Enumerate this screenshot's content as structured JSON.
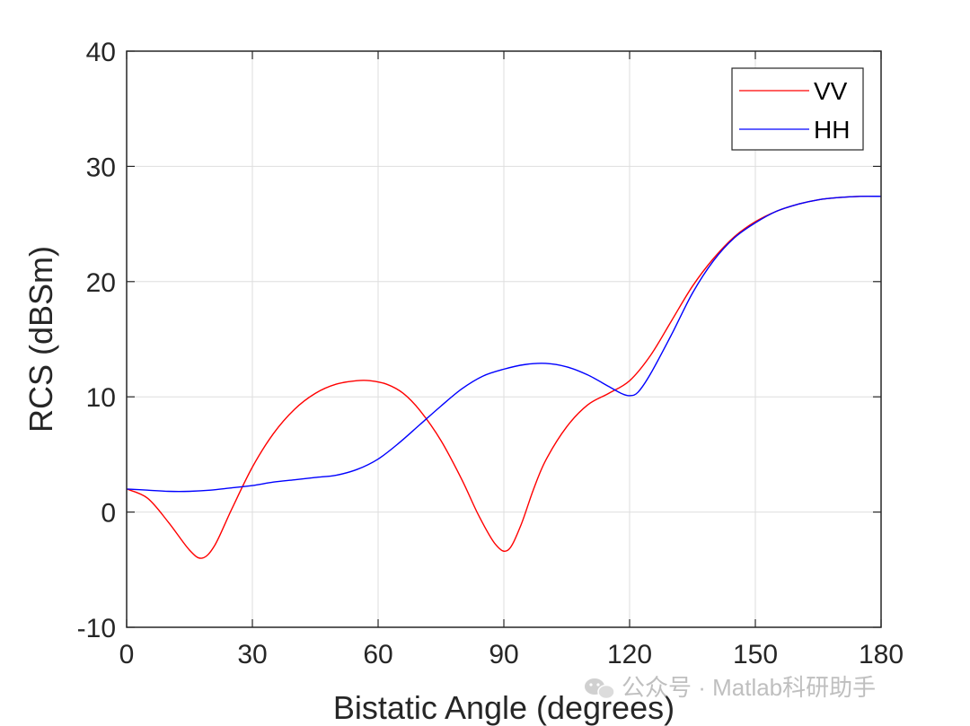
{
  "chart_data": {
    "type": "line",
    "title": "",
    "xlabel": "Bistatic Angle (degrees)",
    "ylabel": "RCS (dBSm)",
    "xlim": [
      0,
      180
    ],
    "ylim": [
      -10,
      40
    ],
    "xticks": [
      0,
      30,
      60,
      90,
      120,
      150,
      180
    ],
    "yticks": [
      -10,
      0,
      10,
      20,
      30,
      40
    ],
    "xtick_labels": [
      "0",
      "30",
      "60",
      "90",
      "120",
      "150",
      "180"
    ],
    "ytick_labels": [
      "-10",
      "0",
      "10",
      "20",
      "30",
      "40"
    ],
    "grid": true,
    "legend_position": "top-right",
    "series": [
      {
        "name": "VV",
        "color": "#ff0000",
        "x": [
          0,
          5,
          10,
          15,
          18,
          21,
          25,
          30,
          35,
          40,
          45,
          50,
          55,
          58,
          62,
          66,
          70,
          75,
          80,
          84,
          88,
          91,
          94,
          97,
          100,
          105,
          110,
          115,
          120,
          125,
          130,
          135,
          140,
          145,
          150,
          155,
          160,
          165,
          170,
          175,
          180
        ],
        "values": [
          2.0,
          1.2,
          -0.9,
          -3.3,
          -4.0,
          -2.9,
          0.2,
          3.9,
          6.8,
          8.9,
          10.3,
          11.1,
          11.4,
          11.4,
          11.1,
          10.3,
          8.8,
          6.2,
          2.8,
          -0.3,
          -2.8,
          -3.3,
          -1.2,
          1.9,
          4.5,
          7.4,
          9.3,
          10.3,
          11.4,
          13.6,
          16.6,
          19.6,
          22.0,
          23.9,
          25.2,
          26.1,
          26.7,
          27.1,
          27.3,
          27.4,
          27.4
        ]
      },
      {
        "name": "HH",
        "color": "#0000ff",
        "x": [
          0,
          5,
          10,
          15,
          20,
          25,
          30,
          35,
          40,
          45,
          50,
          55,
          60,
          65,
          70,
          75,
          80,
          85,
          90,
          95,
          100,
          105,
          110,
          115,
          118,
          120,
          122,
          125,
          130,
          135,
          140,
          145,
          150,
          155,
          160,
          165,
          170,
          175,
          180
        ],
        "values": [
          2.0,
          1.9,
          1.8,
          1.8,
          1.9,
          2.1,
          2.3,
          2.6,
          2.8,
          3.0,
          3.2,
          3.7,
          4.6,
          6.0,
          7.6,
          9.2,
          10.7,
          11.8,
          12.4,
          12.8,
          12.9,
          12.6,
          11.9,
          10.9,
          10.3,
          10.1,
          10.4,
          12.0,
          15.4,
          19.0,
          21.8,
          23.8,
          25.1,
          26.1,
          26.7,
          27.1,
          27.3,
          27.4,
          27.4
        ]
      }
    ]
  },
  "watermark": {
    "text": "公众号 · Matlab科研助手",
    "icon": "wechat-icon"
  }
}
